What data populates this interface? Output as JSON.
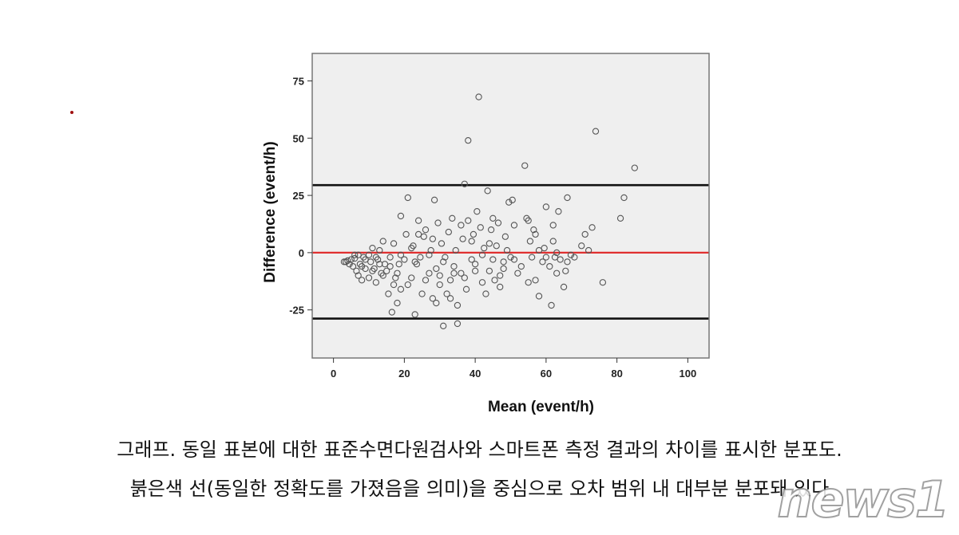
{
  "caption": {
    "line1": "그래프. 동일 표본에 대한 표준수면다원검사와 스마트폰 측정 결과의 차이를 표시한 분포도.",
    "line2": "붉은색 선(동일한 정확도를 가졌음을 의미)을 중심으로 오차 범위 내 대부분 분포돼 있다"
  },
  "watermark": "news1",
  "colors": {
    "plot_bg": "#efefef",
    "bias_line": "#e03030",
    "limit_line": "#111111",
    "point": "#555555"
  },
  "chart_data": {
    "type": "scatter",
    "title": "",
    "xlabel": "Mean (event/h)",
    "ylabel": "Difference (event/h)",
    "xlim": [
      -6,
      106
    ],
    "ylim": [
      -46,
      87
    ],
    "xticks": [
      0,
      20,
      40,
      60,
      80,
      100
    ],
    "yticks": [
      -25,
      0,
      25,
      50,
      75
    ],
    "grid": false,
    "reference_lines": [
      {
        "y": 29.5,
        "color": "#111111",
        "role": "upper limit of agreement"
      },
      {
        "y": 0,
        "color": "#e03030",
        "role": "mean difference"
      },
      {
        "y": -28.8,
        "color": "#111111",
        "role": "lower limit of agreement"
      }
    ],
    "points": [
      [
        3,
        -4
      ],
      [
        4,
        -3.5
      ],
      [
        4.5,
        -5
      ],
      [
        5,
        -3
      ],
      [
        5.5,
        -6
      ],
      [
        6,
        -2.5
      ],
      [
        6.5,
        -8
      ],
      [
        7,
        -1
      ],
      [
        7.5,
        -5
      ],
      [
        8,
        -12
      ],
      [
        8.5,
        -2
      ],
      [
        9,
        -7
      ],
      [
        10,
        -11
      ],
      [
        10.5,
        -4
      ],
      [
        11,
        2
      ],
      [
        11.5,
        -7
      ],
      [
        12,
        -13
      ],
      [
        12.5,
        -3
      ],
      [
        13,
        1
      ],
      [
        13.5,
        -9
      ],
      [
        14,
        5
      ],
      [
        14.5,
        -5
      ],
      [
        15,
        -8
      ],
      [
        15.5,
        -18
      ],
      [
        16,
        -2
      ],
      [
        16.5,
        -26
      ],
      [
        17,
        4
      ],
      [
        17.5,
        -11
      ],
      [
        18,
        -22
      ],
      [
        18.5,
        -5
      ],
      [
        19,
        16
      ],
      [
        19,
        -16
      ],
      [
        20,
        -3
      ],
      [
        20.5,
        8
      ],
      [
        21,
        24
      ],
      [
        22,
        -11
      ],
      [
        22.5,
        3
      ],
      [
        23,
        -27
      ],
      [
        23.5,
        -5
      ],
      [
        24,
        14
      ],
      [
        24.5,
        -2
      ],
      [
        25,
        -18
      ],
      [
        25.5,
        7
      ],
      [
        26,
        10
      ],
      [
        27,
        -9
      ],
      [
        27.5,
        1
      ],
      [
        28,
        -20
      ],
      [
        28.5,
        23
      ],
      [
        29,
        -7
      ],
      [
        29.5,
        13
      ],
      [
        30,
        -14
      ],
      [
        30.5,
        4
      ],
      [
        31,
        -32
      ],
      [
        31.5,
        -2
      ],
      [
        32,
        -18
      ],
      [
        32.5,
        9
      ],
      [
        33,
        -12
      ],
      [
        33.5,
        15
      ],
      [
        34,
        -6
      ],
      [
        34.5,
        1
      ],
      [
        35,
        -31
      ],
      [
        35,
        -23
      ],
      [
        36,
        -9
      ],
      [
        36.5,
        6
      ],
      [
        37,
        30
      ],
      [
        37.5,
        -16
      ],
      [
        38,
        49
      ],
      [
        38,
        14
      ],
      [
        39,
        -3
      ],
      [
        39.5,
        8
      ],
      [
        40,
        -5
      ],
      [
        40.5,
        18
      ],
      [
        41,
        68
      ],
      [
        41.5,
        11
      ],
      [
        42,
        -13
      ],
      [
        42.5,
        2
      ],
      [
        43,
        -18
      ],
      [
        43.5,
        27
      ],
      [
        44,
        -8
      ],
      [
        44.5,
        10
      ],
      [
        45,
        -3
      ],
      [
        45.5,
        -12
      ],
      [
        46,
        3
      ],
      [
        46.5,
        13
      ],
      [
        47,
        -15
      ],
      [
        48,
        -7
      ],
      [
        48.5,
        7
      ],
      [
        49,
        1
      ],
      [
        49.5,
        22
      ],
      [
        50,
        -2
      ],
      [
        50.5,
        23
      ],
      [
        51,
        12
      ],
      [
        53,
        -6
      ],
      [
        54,
        38
      ],
      [
        54.5,
        15
      ],
      [
        55,
        -13
      ],
      [
        55.5,
        5
      ],
      [
        56,
        -2
      ],
      [
        56.5,
        10
      ],
      [
        57,
        8
      ],
      [
        58,
        -19
      ],
      [
        59,
        -4
      ],
      [
        59.5,
        2
      ],
      [
        60,
        20
      ],
      [
        61,
        -6
      ],
      [
        61.5,
        -23
      ],
      [
        62,
        12
      ],
      [
        62.5,
        -2
      ],
      [
        63,
        -9
      ],
      [
        63.5,
        18
      ],
      [
        64,
        -3
      ],
      [
        65,
        -15
      ],
      [
        65.5,
        -8
      ],
      [
        66,
        24
      ],
      [
        68,
        -2
      ],
      [
        70,
        3
      ],
      [
        71,
        8
      ],
      [
        72,
        1
      ],
      [
        73,
        11
      ],
      [
        74,
        53
      ],
      [
        76,
        -13
      ],
      [
        81,
        15
      ],
      [
        82,
        24
      ],
      [
        85,
        37
      ],
      [
        7,
        -10
      ],
      [
        9,
        -3
      ],
      [
        11,
        -8
      ],
      [
        13,
        -5
      ],
      [
        16,
        -6
      ],
      [
        18,
        -9
      ],
      [
        21,
        -14
      ],
      [
        23,
        -4
      ],
      [
        26,
        -12
      ],
      [
        28,
        6
      ],
      [
        30,
        -10
      ],
      [
        33,
        -20
      ],
      [
        36,
        12
      ],
      [
        40,
        -8
      ],
      [
        44,
        4
      ],
      [
        47,
        -10
      ],
      [
        52,
        -9
      ],
      [
        57,
        -12
      ],
      [
        60,
        -2
      ],
      [
        63,
        0
      ],
      [
        66,
        -4
      ],
      [
        3.5,
        -4
      ],
      [
        6,
        -1
      ],
      [
        8,
        -6
      ],
      [
        10,
        -1
      ],
      [
        12,
        -2
      ],
      [
        14,
        -10
      ],
      [
        17,
        -14
      ],
      [
        19,
        -1
      ],
      [
        22,
        2
      ],
      [
        24,
        8
      ],
      [
        27,
        -1
      ],
      [
        29,
        -22
      ],
      [
        31,
        -4
      ],
      [
        34,
        -9
      ],
      [
        37,
        -11
      ],
      [
        39,
        5
      ],
      [
        42,
        -1
      ],
      [
        45,
        15
      ],
      [
        48,
        -4
      ],
      [
        51,
        -3
      ],
      [
        55,
        14
      ],
      [
        58,
        1
      ],
      [
        62,
        5
      ],
      [
        67,
        -1
      ]
    ]
  }
}
